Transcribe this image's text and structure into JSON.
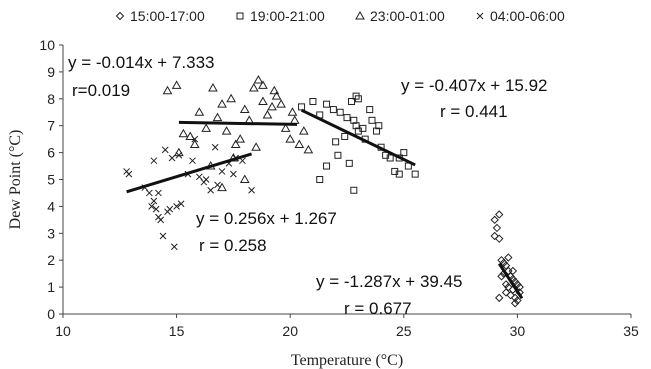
{
  "chart_data": {
    "type": "scatter",
    "xlabel": "Temperature (°C)",
    "ylabel": "Dew Point (°C)",
    "xlim": [
      10,
      35
    ],
    "ylim": [
      0,
      10
    ],
    "x_ticks": [
      "10",
      "15",
      "20",
      "25",
      "30",
      "35"
    ],
    "y_ticks": [
      "0",
      "1",
      "2",
      "3",
      "4",
      "5",
      "6",
      "7",
      "8",
      "9",
      "10"
    ],
    "grid": false,
    "legend_position": "top",
    "series": [
      {
        "name": "15:00-17:00",
        "marker": "diamond",
        "points": [
          [
            29.0,
            3.5
          ],
          [
            29.2,
            3.7
          ],
          [
            29.1,
            3.2
          ],
          [
            29.0,
            2.9
          ],
          [
            29.2,
            2.8
          ],
          [
            29.3,
            2.0
          ],
          [
            29.4,
            1.9
          ],
          [
            29.5,
            1.8
          ],
          [
            29.6,
            1.6
          ],
          [
            29.4,
            1.5
          ],
          [
            29.7,
            1.4
          ],
          [
            29.8,
            1.3
          ],
          [
            29.5,
            1.1
          ],
          [
            29.6,
            1.0
          ],
          [
            29.9,
            1.2
          ],
          [
            29.8,
            0.9
          ],
          [
            29.7,
            0.7
          ],
          [
            29.9,
            0.6
          ],
          [
            30.0,
            0.5
          ],
          [
            30.0,
            1.1
          ],
          [
            30.1,
            0.8
          ],
          [
            29.9,
            0.4
          ],
          [
            29.3,
            1.4
          ],
          [
            29.2,
            0.6
          ],
          [
            29.6,
            2.1
          ],
          [
            29.8,
            1.6
          ],
          [
            29.5,
            0.8
          ],
          [
            30.1,
            1.0
          ]
        ],
        "trendline": {
          "slope": -1.287,
          "intercept": 39.45,
          "x_range": [
            29.2,
            30.2
          ],
          "r": 0.677
        }
      },
      {
        "name": "19:00-21:00",
        "marker": "square",
        "points": [
          [
            20.5,
            7.7
          ],
          [
            21.0,
            7.9
          ],
          [
            21.3,
            7.4
          ],
          [
            21.6,
            7.8
          ],
          [
            21.9,
            7.6
          ],
          [
            22.2,
            7.5
          ],
          [
            22.5,
            7.3
          ],
          [
            22.7,
            7.9
          ],
          [
            22.9,
            8.1
          ],
          [
            22.8,
            7.2
          ],
          [
            22.9,
            7.0
          ],
          [
            23.0,
            6.8
          ],
          [
            23.2,
            6.9
          ],
          [
            23.3,
            6.5
          ],
          [
            23.5,
            7.6
          ],
          [
            23.6,
            7.2
          ],
          [
            23.8,
            6.8
          ],
          [
            24.0,
            6.2
          ],
          [
            24.2,
            5.9
          ],
          [
            24.4,
            5.8
          ],
          [
            24.6,
            5.3
          ],
          [
            24.8,
            5.2
          ],
          [
            25.0,
            6.0
          ],
          [
            25.2,
            5.5
          ],
          [
            25.5,
            5.2
          ],
          [
            23.0,
            8.0
          ],
          [
            22.0,
            6.4
          ],
          [
            22.1,
            5.9
          ],
          [
            22.6,
            5.6
          ],
          [
            22.8,
            4.6
          ],
          [
            21.3,
            5.0
          ],
          [
            21.6,
            5.5
          ],
          [
            22.4,
            6.6
          ],
          [
            24.8,
            5.8
          ],
          [
            23.9,
            7.0
          ]
        ],
        "trendline": {
          "slope": -0.407,
          "intercept": 15.92,
          "x_range": [
            20.5,
            25.5
          ],
          "r": 0.441
        }
      },
      {
        "name": "23:00-01:00",
        "marker": "triangle",
        "points": [
          [
            14.6,
            8.3
          ],
          [
            15.0,
            8.5
          ],
          [
            15.3,
            6.7
          ],
          [
            15.6,
            6.6
          ],
          [
            15.8,
            6.3
          ],
          [
            16.0,
            7.5
          ],
          [
            16.3,
            6.9
          ],
          [
            16.6,
            8.4
          ],
          [
            16.8,
            7.3
          ],
          [
            17.0,
            7.8
          ],
          [
            17.2,
            6.8
          ],
          [
            17.4,
            8.0
          ],
          [
            17.6,
            6.3
          ],
          [
            17.8,
            6.5
          ],
          [
            18.0,
            7.6
          ],
          [
            18.2,
            7.2
          ],
          [
            18.4,
            8.4
          ],
          [
            18.6,
            8.7
          ],
          [
            18.8,
            7.9
          ],
          [
            19.0,
            7.4
          ],
          [
            19.2,
            7.7
          ],
          [
            19.4,
            8.1
          ],
          [
            19.6,
            7.8
          ],
          [
            19.8,
            6.9
          ],
          [
            20.0,
            6.5
          ],
          [
            20.2,
            7.2
          ],
          [
            20.4,
            6.3
          ],
          [
            20.6,
            6.8
          ],
          [
            18.0,
            5.0
          ],
          [
            17.5,
            5.8
          ],
          [
            17.0,
            4.7
          ],
          [
            18.5,
            6.2
          ],
          [
            19.3,
            8.3
          ],
          [
            16.5,
            5.5
          ],
          [
            20.1,
            7.5
          ],
          [
            20.8,
            6.1
          ],
          [
            15.1,
            6.0
          ],
          [
            18.8,
            8.5
          ]
        ],
        "trendline": {
          "slope": -0.014,
          "intercept": 7.333,
          "x_range": [
            15.1,
            20.3
          ],
          "r": 0.019
        }
      },
      {
        "name": "04:00-06:00",
        "marker": "x",
        "points": [
          [
            12.8,
            5.3
          ],
          [
            12.9,
            5.2
          ],
          [
            13.6,
            4.7
          ],
          [
            13.8,
            4.5
          ],
          [
            14.0,
            4.2
          ],
          [
            14.1,
            3.9
          ],
          [
            14.2,
            3.6
          ],
          [
            14.3,
            3.5
          ],
          [
            14.4,
            2.9
          ],
          [
            14.6,
            3.8
          ],
          [
            14.7,
            3.9
          ],
          [
            14.9,
            2.5
          ],
          [
            15.0,
            4.0
          ],
          [
            15.2,
            4.1
          ],
          [
            15.5,
            5.2
          ],
          [
            15.7,
            5.7
          ],
          [
            16.0,
            5.1
          ],
          [
            16.2,
            4.9
          ],
          [
            16.5,
            4.6
          ],
          [
            16.8,
            4.8
          ],
          [
            17.0,
            5.3
          ],
          [
            17.3,
            5.6
          ],
          [
            17.6,
            5.8
          ],
          [
            17.9,
            5.7
          ],
          [
            18.3,
            4.6
          ],
          [
            14.5,
            6.1
          ],
          [
            14.8,
            5.8
          ],
          [
            15.1,
            5.9
          ],
          [
            14.0,
            5.7
          ],
          [
            16.3,
            5.0
          ],
          [
            15.8,
            6.5
          ],
          [
            16.7,
            6.2
          ],
          [
            17.5,
            5.2
          ],
          [
            13.9,
            4.0
          ],
          [
            14.2,
            4.5
          ]
        ],
        "trendline": {
          "slope": 0.256,
          "intercept": 1.267,
          "x_range": [
            12.8,
            18.3
          ],
          "r": 0.258
        }
      }
    ],
    "annotations": [
      {
        "equation": "y = -0.014x + 7.333",
        "r_text": "r=0.019"
      },
      {
        "equation": "y = -0.407x + 15.92",
        "r_text": "r = 0.441"
      },
      {
        "equation": "y = 0.256x + 1.267",
        "r_text": "r = 0.258"
      },
      {
        "equation": "y = -1.287x + 39.45",
        "r_text": "r = 0.677"
      }
    ]
  }
}
